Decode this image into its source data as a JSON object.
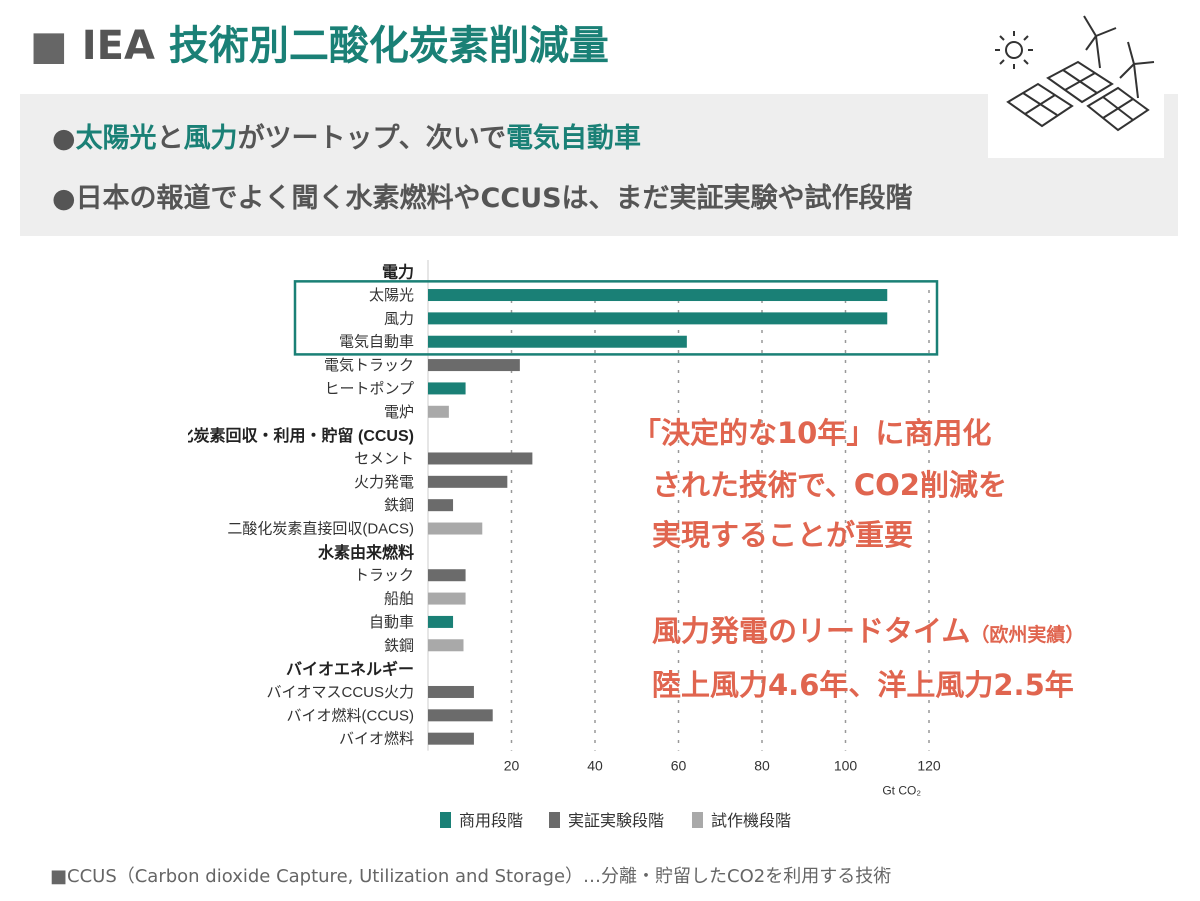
{
  "title": {
    "prefix": "■",
    "org": "IEA",
    "main": "技術別二酸化炭素削減量"
  },
  "bullets": [
    {
      "dot": "●",
      "parts": [
        {
          "text": "太陽光",
          "hl": true
        },
        {
          "text": "と",
          "hl": false
        },
        {
          "text": "風力",
          "hl": true
        },
        {
          "text": "がツートップ、次いで",
          "hl": false
        },
        {
          "text": "電気自動車",
          "hl": true
        }
      ]
    },
    {
      "dot": "●",
      "parts": [
        {
          "text": "日本の報道でよく聞く水素燃料やCCUSは、まだ実証実験や試作段階",
          "hl": false
        }
      ]
    }
  ],
  "illustration": {
    "icons": [
      "sun-icon",
      "wind-turbine-icon",
      "solar-panel-icon"
    ]
  },
  "annotations": {
    "line1": "「決定的な10年」に商用化",
    "line2": "された技術で、CO2削減を",
    "line3": "実現することが重要",
    "line4_main": "風力発電のリードタイム",
    "line4_note": "（欧州実績）",
    "line5": "陸上風力4.6年、洋上風力2.5年"
  },
  "footnote": "■CCUS（Carbon dioxide Capture, Utilization and Storage）…分離・貯留したCO2を利用する技術",
  "colors": {
    "accent": "#1a8076",
    "annotation": "#e0654f",
    "commercial": "#1a8076",
    "demonstration": "#6b6b6b",
    "prototype": "#a9a9a9"
  },
  "chart_data": {
    "type": "bar",
    "orientation": "horizontal",
    "xlabel": "Gt CO₂",
    "xlim": [
      0,
      120
    ],
    "xticks": [
      20,
      40,
      60,
      80,
      100,
      120
    ],
    "grid": true,
    "legend": {
      "placement": "bottom",
      "entries": [
        {
          "key": "commercial",
          "label": "商用段階"
        },
        {
          "key": "demonstration",
          "label": "実証実験段階"
        },
        {
          "key": "prototype",
          "label": "試作機段階"
        }
      ]
    },
    "highlight_box": {
      "label": "commercial-highlight",
      "rows": [
        "太陽光",
        "風力",
        "電気自動車"
      ]
    },
    "groups": [
      {
        "name": "電力",
        "items": [
          {
            "label": "太陽光",
            "value": 110,
            "stage": "commercial"
          },
          {
            "label": "風力",
            "value": 110,
            "stage": "commercial"
          },
          {
            "label": "電気自動車",
            "value": 62,
            "stage": "commercial"
          },
          {
            "label": "電気トラック",
            "value": 22,
            "stage": "demonstration"
          },
          {
            "label": "ヒートポンプ",
            "value": 9,
            "stage": "commercial"
          },
          {
            "label": "電炉",
            "value": 5,
            "stage": "prototype"
          }
        ]
      },
      {
        "name": "二酸化炭素回収・利用・貯留 (CCUS)",
        "items": [
          {
            "label": "セメント",
            "value": 25,
            "stage": "demonstration"
          },
          {
            "label": "火力発電",
            "value": 19,
            "stage": "demonstration"
          },
          {
            "label": "鉄鋼",
            "value": 6,
            "stage": "demonstration"
          },
          {
            "label": "二酸化炭素直接回収(DACS)",
            "value": 13,
            "stage": "prototype"
          }
        ]
      },
      {
        "name": "水素由来燃料",
        "items": [
          {
            "label": "トラック",
            "value": 9,
            "stage": "demonstration"
          },
          {
            "label": "船舶",
            "value": 9,
            "stage": "prototype"
          },
          {
            "label": "自動車",
            "value": 6,
            "stage": "commercial"
          },
          {
            "label": "鉄鋼",
            "value": 8.5,
            "stage": "prototype"
          }
        ]
      },
      {
        "name": "バイオエネルギー",
        "items": [
          {
            "label": "バイオマスCCUS火力",
            "value": 11,
            "stage": "demonstration"
          },
          {
            "label": "バイオ燃料(CCUS)",
            "value": 15.5,
            "stage": "demonstration"
          },
          {
            "label": "バイオ燃料",
            "value": 11,
            "stage": "demonstration"
          }
        ]
      }
    ]
  }
}
